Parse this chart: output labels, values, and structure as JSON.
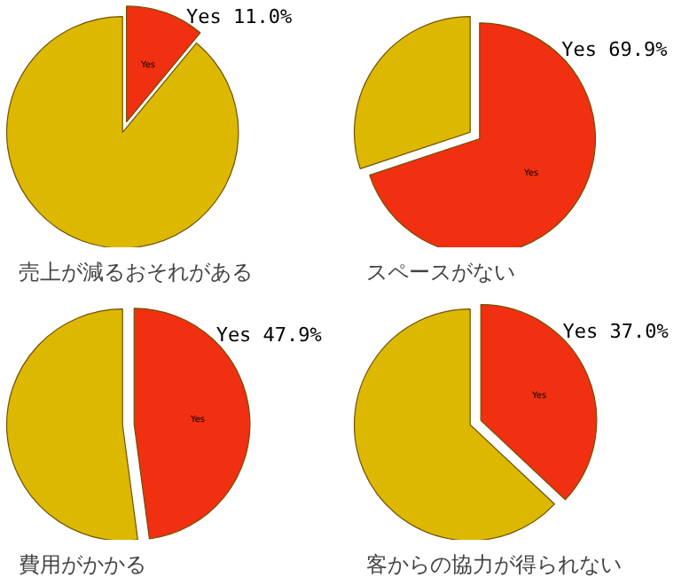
{
  "chart_data": [
    {
      "type": "pie",
      "title": "売上が減るおそれがある",
      "categories": [
        "Yes",
        null
      ],
      "values": [
        11.0,
        89.0
      ],
      "colors": [
        "#f03010",
        "#dcb800"
      ],
      "value_labels": [
        "Yes 11.0%",
        null
      ]
    },
    {
      "type": "pie",
      "title": "スペースがない",
      "categories": [
        "Yes",
        null
      ],
      "values": [
        69.9,
        30.1
      ],
      "colors": [
        "#f03010",
        "#dcb800"
      ],
      "value_labels": [
        "Yes 69.9%",
        null
      ]
    },
    {
      "type": "pie",
      "title": "費用がかかる",
      "categories": [
        "Yes",
        null
      ],
      "values": [
        47.9,
        52.1
      ],
      "colors": [
        "#f03010",
        "#dcb800"
      ],
      "value_labels": [
        "Yes 47.9%",
        null
      ]
    },
    {
      "type": "pie",
      "title": "客からの協力が得られない",
      "categories": [
        "Yes",
        null
      ],
      "values": [
        37.0,
        63.0
      ],
      "colors": [
        "#f03010",
        "#dcb800"
      ],
      "value_labels": [
        "Yes 37.0%",
        null
      ]
    }
  ]
}
